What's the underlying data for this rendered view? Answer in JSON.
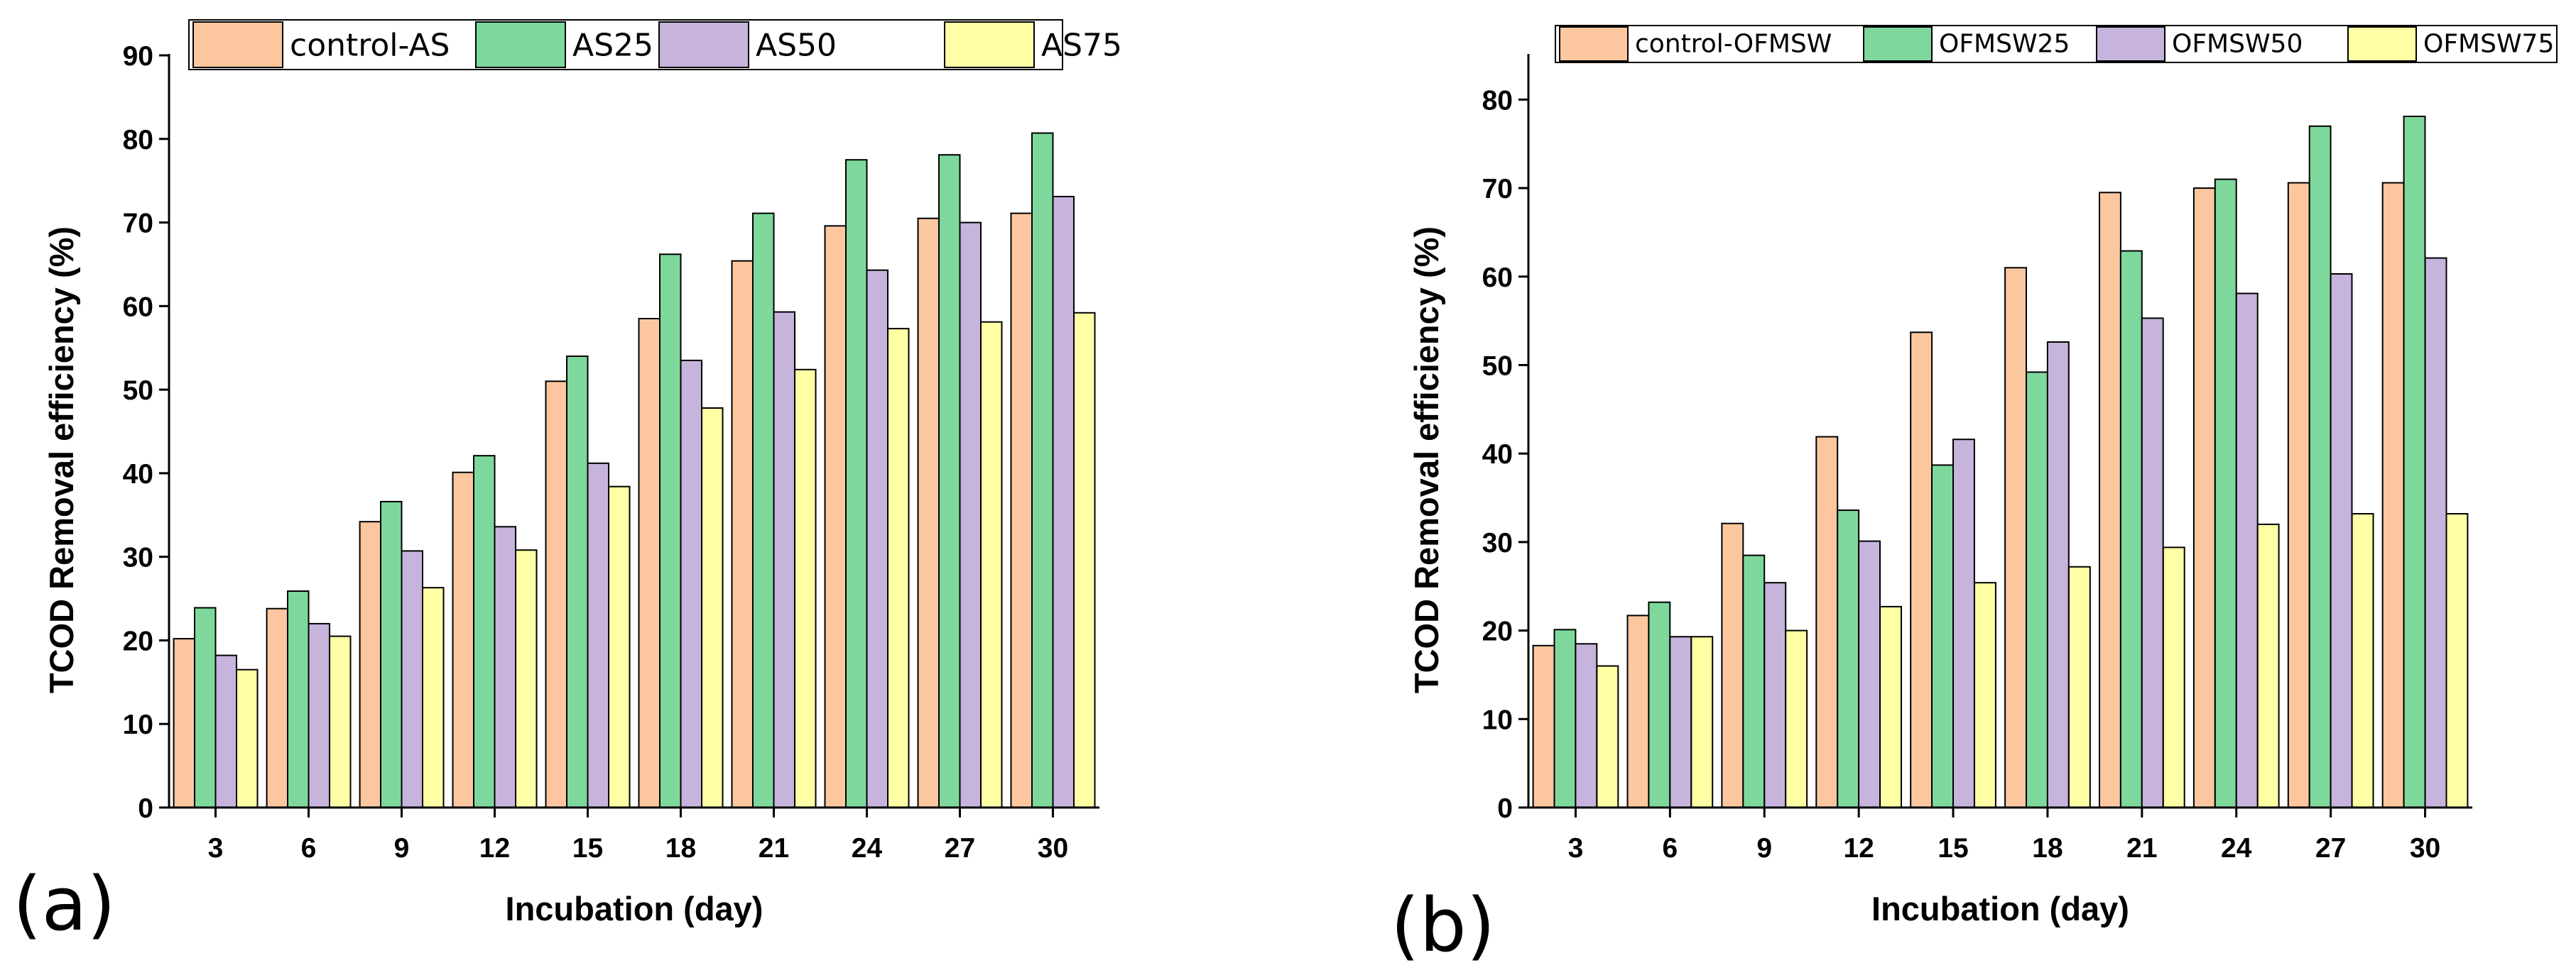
{
  "chart_data": [
    {
      "type": "bar",
      "panel_label": "(a)",
      "categories": [
        "3",
        "6",
        "9",
        "12",
        "15",
        "18",
        "21",
        "24",
        "27",
        "30"
      ],
      "series": [
        {
          "name": "control-AS",
          "color": "#FCC79F",
          "values": [
            20.2,
            23.8,
            34.2,
            40.1,
            51.0,
            58.5,
            65.4,
            69.6,
            70.5,
            71.1
          ]
        },
        {
          "name": "AS25",
          "color": "#7ED89C",
          "values": [
            23.9,
            25.9,
            36.6,
            42.1,
            54.0,
            66.2,
            71.1,
            77.5,
            78.1,
            80.7
          ]
        },
        {
          "name": "AS50",
          "color": "#C6B4DD",
          "values": [
            18.2,
            22.0,
            30.7,
            33.6,
            41.2,
            53.5,
            59.3,
            64.3,
            70.0,
            73.1
          ]
        },
        {
          "name": "AS75",
          "color": "#FFFFA6",
          "values": [
            16.5,
            20.5,
            26.3,
            30.8,
            38.4,
            47.8,
            52.4,
            57.3,
            58.1,
            59.2
          ]
        }
      ],
      "xlabel": "Incubation (day)",
      "ylabel": "TCOD Removal efficiency (%)",
      "ylim": [
        0,
        90
      ],
      "yticks": [
        "0",
        "10",
        "20",
        "30",
        "40",
        "50",
        "60",
        "70",
        "80",
        "90"
      ],
      "legend_position": "top"
    },
    {
      "type": "bar",
      "panel_label": "(b)",
      "categories": [
        "3",
        "6",
        "9",
        "12",
        "15",
        "18",
        "21",
        "24",
        "27",
        "30"
      ],
      "series": [
        {
          "name": "control-OFMSW",
          "color": "#FCC79F",
          "values": [
            18.3,
            21.7,
            32.1,
            41.9,
            53.7,
            61.0,
            69.5,
            70.0,
            70.6,
            70.6
          ]
        },
        {
          "name": "OFMSW25",
          "color": "#7ED89C",
          "values": [
            20.1,
            23.2,
            28.5,
            33.6,
            38.7,
            49.2,
            62.9,
            71.0,
            77.0,
            78.1
          ]
        },
        {
          "name": "OFMSW50",
          "color": "#C6B4DD",
          "values": [
            18.5,
            19.3,
            25.4,
            30.1,
            41.6,
            52.6,
            55.3,
            58.1,
            60.3,
            62.1
          ]
        },
        {
          "name": "OFMSW75",
          "color": "#FFFFA6",
          "values": [
            16.0,
            19.3,
            20.0,
            22.7,
            25.4,
            27.2,
            29.4,
            32.0,
            33.2,
            33.2
          ]
        }
      ],
      "xlabel": "Incubation (day)",
      "ylabel": "TCOD Removal efficiency (%)",
      "ylim": [
        0,
        85
      ],
      "yticks": [
        "0",
        "10",
        "20",
        "30",
        "40",
        "50",
        "60",
        "70",
        "80"
      ],
      "legend_position": "top"
    }
  ]
}
